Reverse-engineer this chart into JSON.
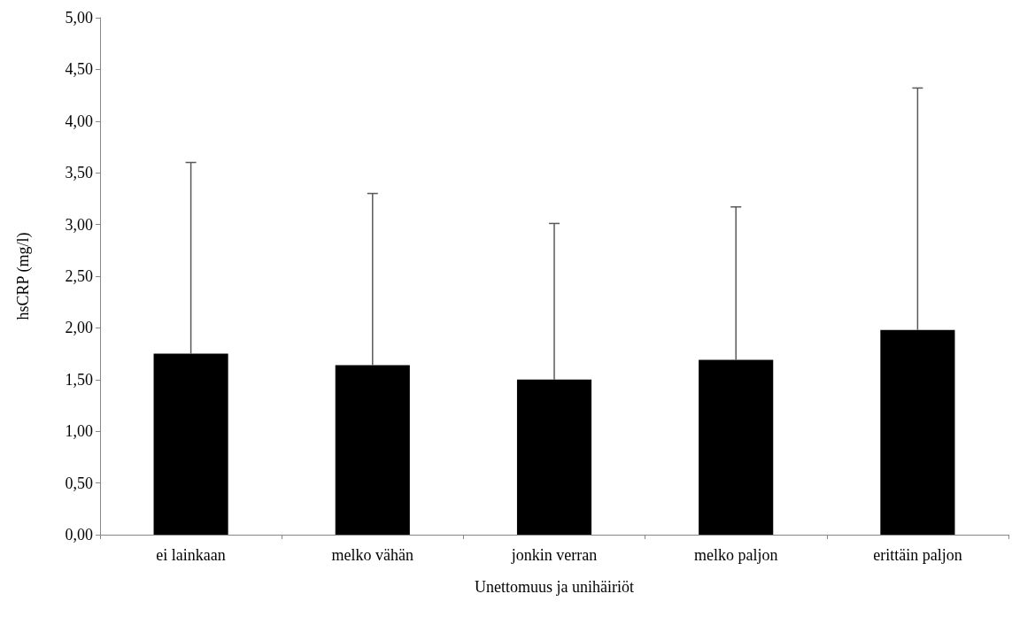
{
  "chart_data": {
    "type": "bar",
    "xlabel": "Unettomuus ja unihäiriöt",
    "ylabel": "hsCRP (mg/l)",
    "categories": [
      "ei lainkaan",
      "melko vähän",
      "jonkin verran",
      "melko paljon",
      "erittäin paljon"
    ],
    "values": [
      1.75,
      1.64,
      1.5,
      1.69,
      1.98
    ],
    "errors": [
      [
        1.75,
        3.6
      ],
      [
        1.64,
        3.3
      ],
      [
        1.5,
        3.01
      ],
      [
        1.69,
        3.17
      ],
      [
        1.98,
        4.32
      ]
    ],
    "color": "#000000",
    "ylim": [
      0,
      5
    ],
    "yticks": [
      {
        "value": 0,
        "label": "0,00"
      },
      {
        "value": 0.5,
        "label": "0,50"
      },
      {
        "value": 1,
        "label": "1,00"
      },
      {
        "value": 1.5,
        "label": "1,50"
      },
      {
        "value": 2,
        "label": "2,00"
      },
      {
        "value": 2.5,
        "label": "2,50"
      },
      {
        "value": 3,
        "label": "3,00"
      },
      {
        "value": 3.5,
        "label": "3,50"
      },
      {
        "value": 4,
        "label": "4,00"
      },
      {
        "value": 4.5,
        "label": "4,50"
      },
      {
        "value": 5,
        "label": "5,00"
      }
    ],
    "grid": false
  }
}
